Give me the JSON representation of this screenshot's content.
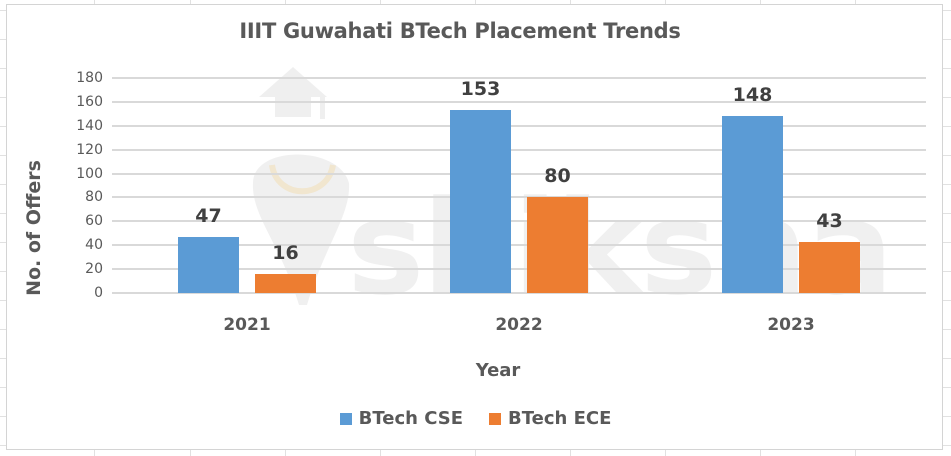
{
  "chart_data": {
    "type": "bar",
    "title": "IIIT Guwahati BTech Placement Trends",
    "xlabel": "Year",
    "ylabel": "No. of Offers",
    "categories": [
      "2021",
      "2022",
      "2023"
    ],
    "series": [
      {
        "name": "BTech CSE",
        "color": "#5B9BD5",
        "values": [
          47,
          153,
          148
        ]
      },
      {
        "name": "BTech ECE",
        "color": "#ED7D31",
        "values": [
          16,
          80,
          43
        ]
      }
    ],
    "ylim": [
      0,
      180
    ],
    "yticks": [
      0,
      20,
      40,
      60,
      80,
      100,
      120,
      140,
      160,
      180
    ],
    "grid": true,
    "legend_position": "bottom",
    "data_labels": true
  },
  "watermark": {
    "text": "shiksha"
  },
  "colors": {
    "cse": "#5B9BD5",
    "ece": "#ED7D31",
    "grid": "#D9D9D9",
    "text": "#595959"
  }
}
